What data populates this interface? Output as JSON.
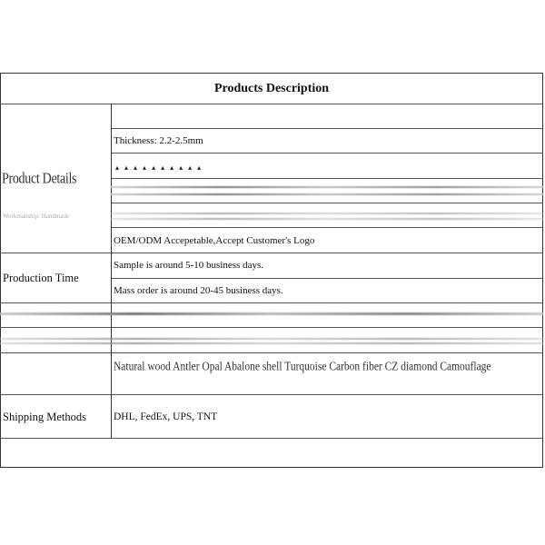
{
  "title": "Products Description",
  "product_details": {
    "label": "Product Details",
    "sublabel": "Workmanship: Handmade",
    "thickness": "Thickness: 2.2-2.5mm",
    "oem": "OEM/ODM Accepetable,Accept Customer's Logo"
  },
  "production_time": {
    "label": "Production Time",
    "sample": "Sample is around 5-10 business days.",
    "mass": "Mass order is around 20-45 business days."
  },
  "materials": "Natural wood  Antler  Opal  Abalone shell  Turquoise  Carbon fiber  CZ diamond  Camouflage",
  "shipping": {
    "label": "Shipping Methods",
    "value": "DHL, FedEx, UPS, TNT"
  }
}
